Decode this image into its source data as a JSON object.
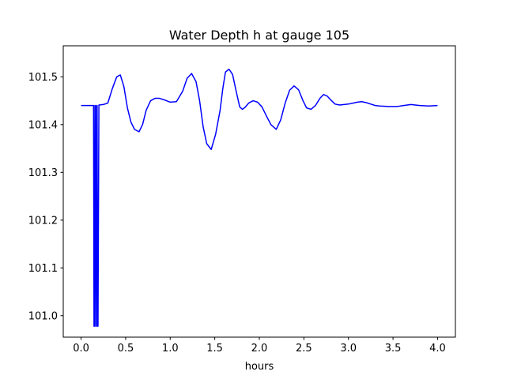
{
  "chart_data": {
    "type": "line",
    "title": "Water Depth h at gauge 105",
    "xlabel": "hours",
    "ylabel": "",
    "xlim": [
      -0.2,
      4.2
    ],
    "ylim": [
      100.955,
      101.565
    ],
    "xticks": [
      0.0,
      0.5,
      1.0,
      1.5,
      2.0,
      2.5,
      3.0,
      3.5,
      4.0
    ],
    "xtick_labels": [
      "0.0",
      "0.5",
      "1.0",
      "1.5",
      "2.0",
      "2.5",
      "3.0",
      "3.5",
      "4.0"
    ],
    "yticks": [
      101.0,
      101.1,
      101.2,
      101.3,
      101.4,
      101.5
    ],
    "ytick_labels": [
      "101.0",
      "101.1",
      "101.2",
      "101.3",
      "101.4",
      "101.5"
    ],
    "grid": false,
    "series": [
      {
        "color": "#0000ff",
        "x": [
          0.0,
          0.14,
          0.145,
          0.15,
          0.155,
          0.16,
          0.165,
          0.17,
          0.175,
          0.18,
          0.185,
          0.19,
          0.2,
          0.25,
          0.3,
          0.35,
          0.4,
          0.44,
          0.48,
          0.52,
          0.56,
          0.6,
          0.65,
          0.69,
          0.73,
          0.78,
          0.83,
          0.88,
          0.93,
          1.0,
          1.07,
          1.14,
          1.19,
          1.24,
          1.29,
          1.33,
          1.37,
          1.41,
          1.46,
          1.51,
          1.56,
          1.59,
          1.62,
          1.66,
          1.7,
          1.74,
          1.78,
          1.81,
          1.84,
          1.88,
          1.93,
          1.98,
          2.03,
          2.08,
          2.13,
          2.19,
          2.24,
          2.29,
          2.34,
          2.39,
          2.44,
          2.49,
          2.53,
          2.58,
          2.63,
          2.68,
          2.72,
          2.76,
          2.8,
          2.85,
          2.9,
          2.95,
          3.0,
          3.05,
          3.1,
          3.15,
          3.2,
          3.25,
          3.3,
          3.35,
          3.45,
          3.55,
          3.62,
          3.7,
          3.8,
          3.9,
          4.0
        ],
        "y": [
          101.44,
          101.44,
          100.978,
          100.978,
          101.44,
          101.44,
          100.978,
          100.978,
          101.44,
          101.44,
          100.978,
          100.978,
          101.441,
          101.442,
          101.445,
          101.475,
          101.5,
          101.504,
          101.48,
          101.435,
          101.405,
          101.39,
          101.385,
          101.4,
          101.43,
          101.45,
          101.455,
          101.455,
          101.452,
          101.447,
          101.448,
          101.47,
          101.497,
          101.507,
          101.49,
          101.45,
          101.395,
          101.36,
          101.348,
          101.38,
          101.43,
          101.475,
          101.51,
          101.516,
          101.505,
          101.47,
          101.437,
          101.432,
          101.436,
          101.445,
          101.45,
          101.447,
          101.437,
          101.418,
          101.4,
          101.39,
          101.41,
          101.445,
          101.472,
          101.481,
          101.473,
          101.45,
          101.435,
          101.432,
          101.44,
          101.455,
          101.463,
          101.46,
          101.452,
          101.443,
          101.441,
          101.442,
          101.443,
          101.445,
          101.447,
          101.448,
          101.446,
          101.443,
          101.44,
          101.439,
          101.438,
          101.438,
          101.44,
          101.442,
          101.44,
          101.439,
          101.44
        ]
      }
    ]
  }
}
